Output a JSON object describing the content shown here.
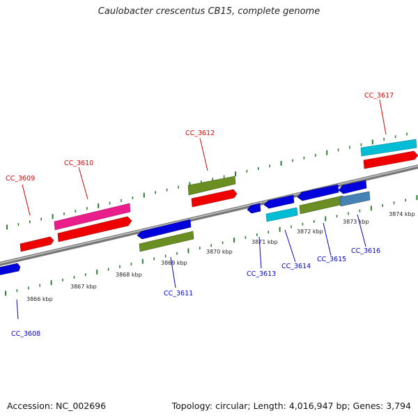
{
  "title": "Caulobacter crescentus CB15, complete genome",
  "footer": {
    "accession": "Accession: NC_002696",
    "stats": "Topology: circular; Length: 4,016,947 bp; Genes: 3,794"
  },
  "colors": {
    "backbone": "#888888",
    "ticks": "#2e7d32",
    "label_forward": "#dd0000",
    "label_reverse": "#0000cc"
  },
  "scale_labels": [
    "3866 kbp",
    "3867 kbp",
    "3868 kbp",
    "3869 kbp",
    "3870 kbp",
    "3871 kbp",
    "3872 kbp",
    "3873 kbp",
    "3874 kbp"
  ],
  "genes": [
    {
      "id": "CC_3608",
      "strand": "reverse",
      "color": "#0000dd"
    },
    {
      "id": "CC_3609",
      "strand": "forward",
      "color": "#ee0000"
    },
    {
      "id": "CC_3610",
      "strand": "forward",
      "color": "#ee0000"
    },
    {
      "id": "CC_3611",
      "strand": "reverse",
      "color": "#6b8e23"
    },
    {
      "id": "CC_3612",
      "strand": "forward",
      "color": "#ee0000"
    },
    {
      "id": "CC_3613",
      "strand": "reverse",
      "color": "#0000dd"
    },
    {
      "id": "CC_3614",
      "strand": "reverse",
      "color": "#00bcd4"
    },
    {
      "id": "CC_3615",
      "strand": "reverse",
      "color": "#6b8e23"
    },
    {
      "id": "CC_3616",
      "strand": "reverse",
      "color": "#4682b4"
    },
    {
      "id": "CC_3617",
      "strand": "forward",
      "color": "#ee0000"
    }
  ]
}
